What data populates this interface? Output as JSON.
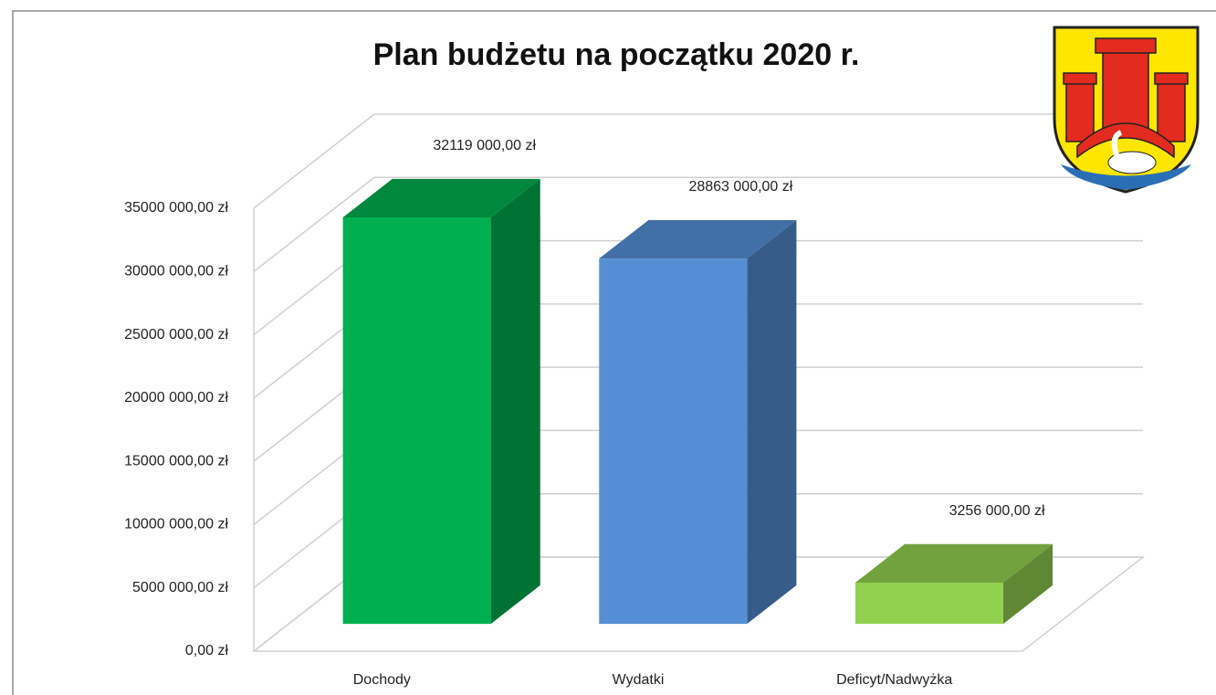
{
  "chart_data": {
    "type": "bar3d",
    "title": "Plan budżetu na początku 2020 r.",
    "categories": [
      "Dochody",
      "Wydatki",
      "Deficyt/Nadwyżka"
    ],
    "values": [
      32119000,
      28863000,
      3256000
    ],
    "value_labels": [
      "32119 000,00 zł",
      "28863 000,00 zł",
      "3256 000,00 zł"
    ],
    "colors": [
      "#00b050",
      "#558ed5",
      "#92d050"
    ],
    "ylim": [
      0,
      35000000
    ],
    "yticks": [
      {
        "value": 0,
        "label": "0,00 zł"
      },
      {
        "value": 5000000,
        "label": "5000 000,00 zł"
      },
      {
        "value": 10000000,
        "label": "10000 000,00 zł"
      },
      {
        "value": 15000000,
        "label": "15000 000,00 zł"
      },
      {
        "value": 20000000,
        "label": "20000 000,00 zł"
      },
      {
        "value": 25000000,
        "label": "25000 000,00 zł"
      },
      {
        "value": 30000000,
        "label": "30000 000,00 zł"
      },
      {
        "value": 35000000,
        "label": "35000 000,00 zł"
      }
    ],
    "grid": true
  }
}
